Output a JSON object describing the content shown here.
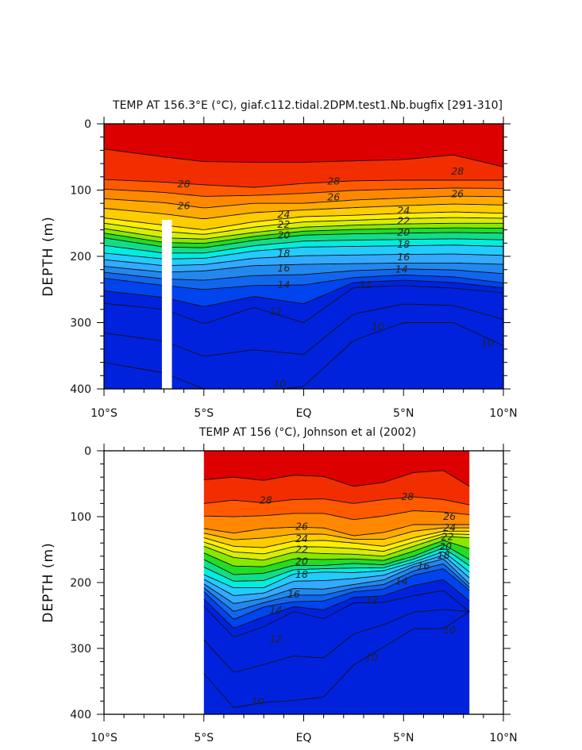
{
  "chart_data": [
    {
      "type": "contour",
      "title": "TEMP AT 156.3°E (°C), giaf.c112.tidal.2DPM.test1.Nb.bugfix [291-310]",
      "xlabel": "",
      "ylabel": "DEPTH (m)",
      "x_ticks": [
        "10°S",
        "5°S",
        "EQ",
        "5°N",
        "10°N"
      ],
      "y_ticks": [
        "0",
        "100",
        "200",
        "300",
        "400"
      ],
      "xlim": [
        -10,
        10
      ],
      "ylim": [
        400,
        0
      ],
      "data_extent": [
        -10,
        10
      ],
      "data_gap": [
        -7.1,
        -6.6
      ],
      "levels": [
        10,
        11,
        12,
        13,
        14,
        15,
        16,
        17,
        18,
        19,
        20,
        21,
        22,
        23,
        24,
        25,
        26,
        27,
        28,
        29
      ],
      "isotherm_depths": {
        "x": [
          -10,
          -7,
          -5,
          -2.5,
          0,
          2.5,
          5,
          7.5,
          10
        ],
        "29": [
          38,
          50,
          57,
          58,
          58,
          56,
          54,
          47,
          65
        ],
        "28": [
          84,
          88,
          92,
          96,
          90,
          86,
          85,
          85,
          85
        ],
        "26": [
          113,
          119,
          127,
          120,
          120,
          115,
          112,
          109,
          110
        ],
        "24": [
          142,
          153,
          160,
          148,
          140,
          138,
          135,
          133,
          135
        ],
        "22": [
          158,
          172,
          174,
          164,
          156,
          153,
          151,
          150,
          150
        ],
        "20": [
          172,
          186,
          187,
          176,
          168,
          166,
          165,
          164,
          165
        ],
        "18": [
          195,
          204,
          203,
          192,
          186,
          185,
          184,
          183,
          185
        ],
        "16": [
          215,
          224,
          222,
          214,
          212,
          211,
          210,
          210,
          212
        ],
        "14": [
          233,
          244,
          250,
          244,
          243,
          232,
          228,
          231,
          240
        ],
        "12": [
          271,
          280,
          302,
          277,
          300,
          247,
          244,
          248,
          255
        ],
        "10": [
          360,
          376,
          400,
          405,
          396,
          327,
          300,
          300,
          335
        ]
      },
      "labels_shown": [
        {
          "text": "28",
          "x": -6.0,
          "y": 91
        },
        {
          "text": "26",
          "x": -6.0,
          "y": 124
        },
        {
          "text": "28",
          "x": 1.5,
          "y": 87
        },
        {
          "text": "26",
          "x": 1.5,
          "y": 111
        },
        {
          "text": "28",
          "x": 7.7,
          "y": 72
        },
        {
          "text": "26",
          "x": 7.7,
          "y": 106
        },
        {
          "text": "24",
          "x": -1.0,
          "y": 137
        },
        {
          "text": "22",
          "x": -1.0,
          "y": 152
        },
        {
          "text": "20",
          "x": -1.0,
          "y": 168
        },
        {
          "text": "18",
          "x": -1.0,
          "y": 196
        },
        {
          "text": "16",
          "x": -1.0,
          "y": 218
        },
        {
          "text": "14",
          "x": -1.0,
          "y": 243
        },
        {
          "text": "12",
          "x": -1.4,
          "y": 283
        },
        {
          "text": "24",
          "x": 5.0,
          "y": 131
        },
        {
          "text": "22",
          "x": 5.0,
          "y": 147
        },
        {
          "text": "20",
          "x": 5.0,
          "y": 164
        },
        {
          "text": "18",
          "x": 5.0,
          "y": 182
        },
        {
          "text": "16",
          "x": 5.0,
          "y": 201
        },
        {
          "text": "14",
          "x": 4.9,
          "y": 220
        },
        {
          "text": "12",
          "x": 3.1,
          "y": 243
        },
        {
          "text": "10",
          "x": 3.7,
          "y": 306
        },
        {
          "text": "10",
          "x": 9.2,
          "y": 331
        },
        {
          "text": "10",
          "x": -1.2,
          "y": 393
        }
      ]
    },
    {
      "type": "contour",
      "title": "TEMP AT 156 (°C), Johnson et al (2002)",
      "xlabel": "",
      "ylabel": "DEPTH (m)",
      "x_ticks": [
        "10°S",
        "5°S",
        "EQ",
        "5°N",
        "10°N"
      ],
      "y_ticks": [
        "0",
        "100",
        "200",
        "300",
        "400"
      ],
      "xlim": [
        -10,
        10
      ],
      "ylim": [
        400,
        0
      ],
      "data_extent": [
        -5,
        8.3
      ],
      "data_gap": null,
      "levels": [
        10,
        11,
        12,
        13,
        14,
        15,
        16,
        17,
        18,
        19,
        20,
        21,
        22,
        23,
        24,
        25,
        26,
        27,
        28,
        29
      ],
      "isotherm_depths": {
        "x": [
          -5,
          -3.5,
          -2,
          -0.5,
          1,
          2.5,
          4,
          5.5,
          7,
          8.3
        ],
        "29": [
          44,
          40,
          45,
          37,
          39,
          54,
          48,
          33,
          30,
          54
        ],
        "28": [
          80,
          75,
          79,
          74,
          73,
          80,
          74,
          70,
          74,
          82
        ],
        "26": [
          118,
          125,
          118,
          116,
          117,
          129,
          124,
          112,
          112,
          112
        ],
        "24": [
          132,
          145,
          147,
          137,
          136,
          140,
          145,
          132,
          122,
          122
        ],
        "22": [
          145,
          162,
          166,
          154,
          156,
          157,
          160,
          145,
          130,
          132
        ],
        "20": [
          165,
          188,
          186,
          174,
          174,
          171,
          173,
          160,
          142,
          165
        ],
        "18": [
          188,
          208,
          208,
          187,
          184,
          185,
          182,
          169,
          153,
          184
        ],
        "16": [
          202,
          232,
          224,
          209,
          210,
          203,
          196,
          176,
          164,
          202
        ],
        "14": [
          214,
          256,
          237,
          229,
          228,
          214,
          210,
          189,
          179,
          212
        ],
        "12": [
          236,
          283,
          267,
          244,
          255,
          231,
          230,
          220,
          212,
          244
        ],
        "10": [
          338,
          390,
          382,
          379,
          374,
          325,
          298,
          270,
          270,
          244
        ]
      },
      "labels_shown": [
        {
          "text": "28",
          "x": -1.9,
          "y": 75
        },
        {
          "text": "28",
          "x": 5.2,
          "y": 70
        },
        {
          "text": "26",
          "x": -0.1,
          "y": 115
        },
        {
          "text": "24",
          "x": -0.1,
          "y": 134
        },
        {
          "text": "22",
          "x": -0.1,
          "y": 150
        },
        {
          "text": "20",
          "x": -0.1,
          "y": 168
        },
        {
          "text": "18",
          "x": -0.1,
          "y": 188
        },
        {
          "text": "16",
          "x": -0.5,
          "y": 218
        },
        {
          "text": "14",
          "x": -1.4,
          "y": 242
        },
        {
          "text": "12",
          "x": 3.4,
          "y": 227
        },
        {
          "text": "12",
          "x": -1.4,
          "y": 286
        },
        {
          "text": "26",
          "x": 7.3,
          "y": 100
        },
        {
          "text": "24",
          "x": 7.3,
          "y": 117
        },
        {
          "text": "22",
          "x": 7.2,
          "y": 131
        },
        {
          "text": "20",
          "x": 7.1,
          "y": 146
        },
        {
          "text": "18",
          "x": 7.0,
          "y": 159
        },
        {
          "text": "16",
          "x": 6.0,
          "y": 175
        },
        {
          "text": "14",
          "x": 4.9,
          "y": 198
        },
        {
          "text": "10",
          "x": 7.3,
          "y": 272
        },
        {
          "text": "10",
          "x": 3.4,
          "y": 314
        },
        {
          "text": "10",
          "x": -2.3,
          "y": 381
        }
      ]
    }
  ],
  "palette": {
    "warm": [
      "#dd0000",
      "#f22e00",
      "#ff5a00",
      "#ff8800",
      "#ffaa00",
      "#ffcc00",
      "#ffee00",
      "#d8ee00",
      "#88e800",
      "#22dd22"
    ],
    "cool": [
      "#11dd88",
      "#00eedd",
      "#22ccff",
      "#33aaff",
      "#2288ee",
      "#1166ee",
      "#0044ee",
      "#0022dd"
    ]
  }
}
